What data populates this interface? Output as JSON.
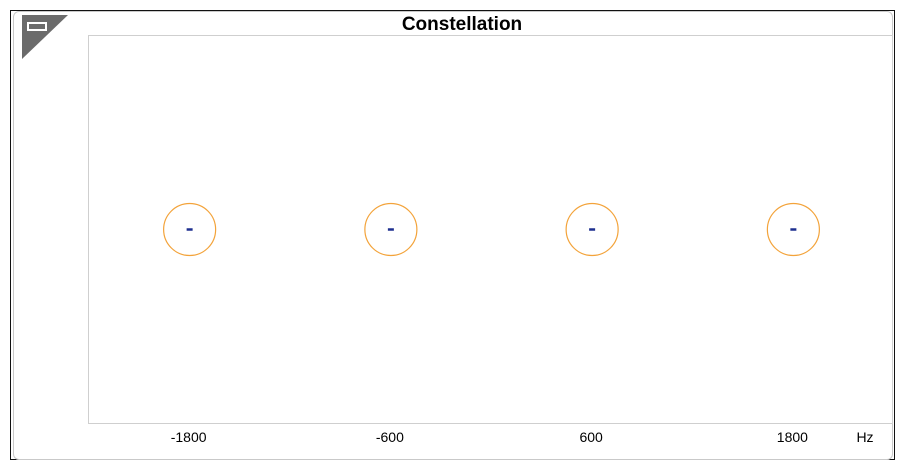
{
  "window": {
    "title": "Constellation"
  },
  "controls": {
    "corner_icon": "window-toggle-icon"
  },
  "chart_data": {
    "type": "scatter",
    "title": "Constellation",
    "xlabel": "Hz",
    "ylabel": "",
    "x_ticks": [
      "-1800",
      "-600",
      "600",
      "1800"
    ],
    "xlim": [
      -2400,
      2400
    ],
    "ylim": [
      -1,
      1
    ],
    "grid": false,
    "points": [
      {
        "x": -1800,
        "y": 0,
        "marker": "-"
      },
      {
        "x": -600,
        "y": 0,
        "marker": "-"
      },
      {
        "x": 600,
        "y": 0,
        "marker": "-"
      },
      {
        "x": 1800,
        "y": 0,
        "marker": "-"
      }
    ],
    "target_circles": [
      {
        "x": -1800,
        "y": 0
      },
      {
        "x": -600,
        "y": 0
      },
      {
        "x": 600,
        "y": 0
      },
      {
        "x": 1800,
        "y": 0
      }
    ]
  },
  "colors": {
    "circle": "#f3a33a",
    "marker": "#1d2f8f",
    "corner": "#6b6b6b",
    "corner_icon_stroke": "#ffffff"
  }
}
